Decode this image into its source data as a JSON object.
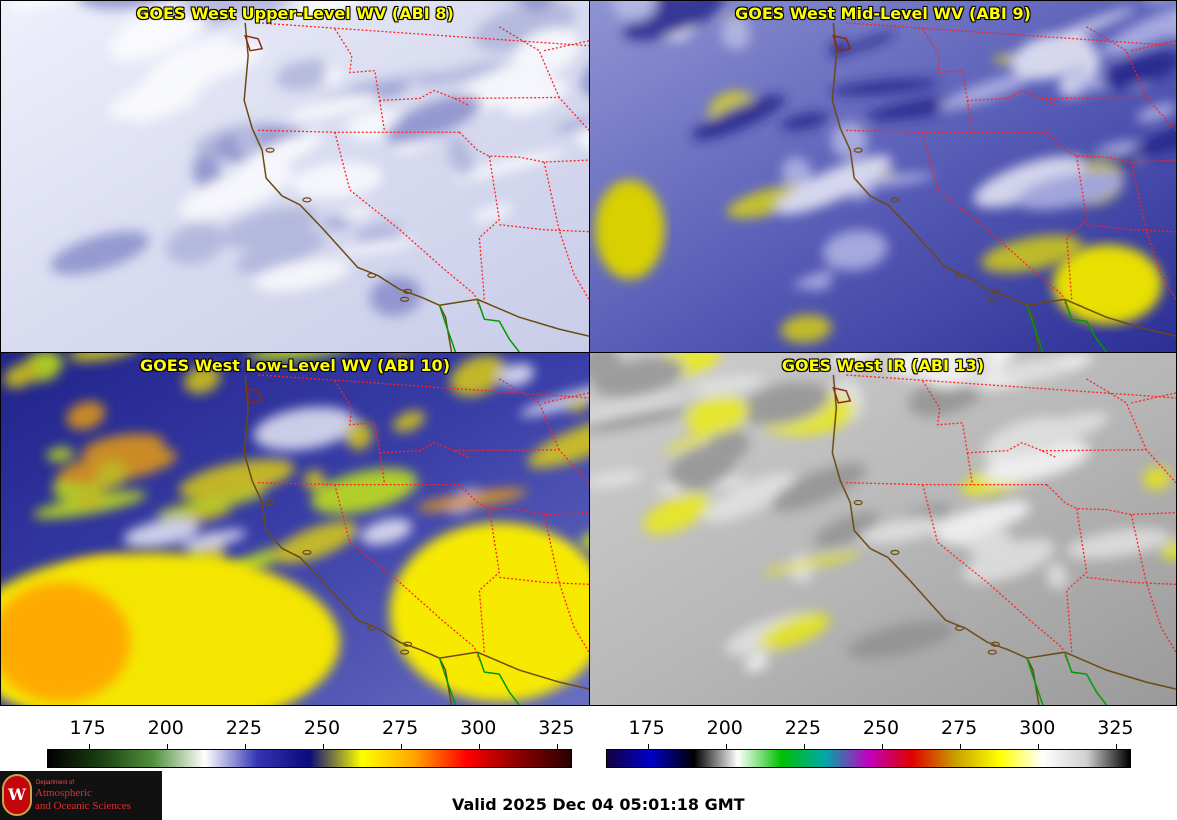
{
  "panels": [
    {
      "title": "GOES West Upper-Level WV (ABI 8)",
      "palette": "upper"
    },
    {
      "title": "GOES West Mid-Level WV (ABI 9)",
      "palette": "mid"
    },
    {
      "title": "GOES West Low-Level WV (ABI 10)",
      "palette": "low"
    },
    {
      "title": "GOES West IR (ABI 13)",
      "palette": "ir"
    }
  ],
  "colorbars": {
    "wv": {
      "ticks": [
        "175",
        "200",
        "225",
        "250",
        "275",
        "300",
        "325"
      ],
      "range": [
        162,
        330
      ],
      "stops": [
        "#000000",
        "#1b3f12",
        "#4f8f3a",
        "#ffffff",
        "#3535b5",
        "#0a0a7a",
        "#ffff00",
        "#ffa500",
        "#ff0000",
        "#8b0000",
        "#2a0000"
      ]
    },
    "ir": {
      "ticks": [
        "175",
        "200",
        "225",
        "250",
        "275",
        "300",
        "325"
      ],
      "range": [
        162,
        330
      ],
      "stops": [
        "#140040",
        "#0000c8",
        "#000000",
        "#ffffff",
        "#00c000",
        "#00a8a8",
        "#c000c0",
        "#e00000",
        "#c8a000",
        "#ffff00",
        "#ffffff",
        "#d0d0d0",
        "#000000"
      ]
    }
  },
  "footer": {
    "logo_lines": [
      "Department of",
      "Atmospheric",
      "and Oceanic Sciences"
    ],
    "logo_letter": "W",
    "valid_text": "Valid 2025 Dec 04 05:01:18 GMT"
  },
  "colors": {
    "title": "#ffff00",
    "state_borders": "#ff2020",
    "coast": "#6b4a12",
    "mexico": "#009a00"
  }
}
